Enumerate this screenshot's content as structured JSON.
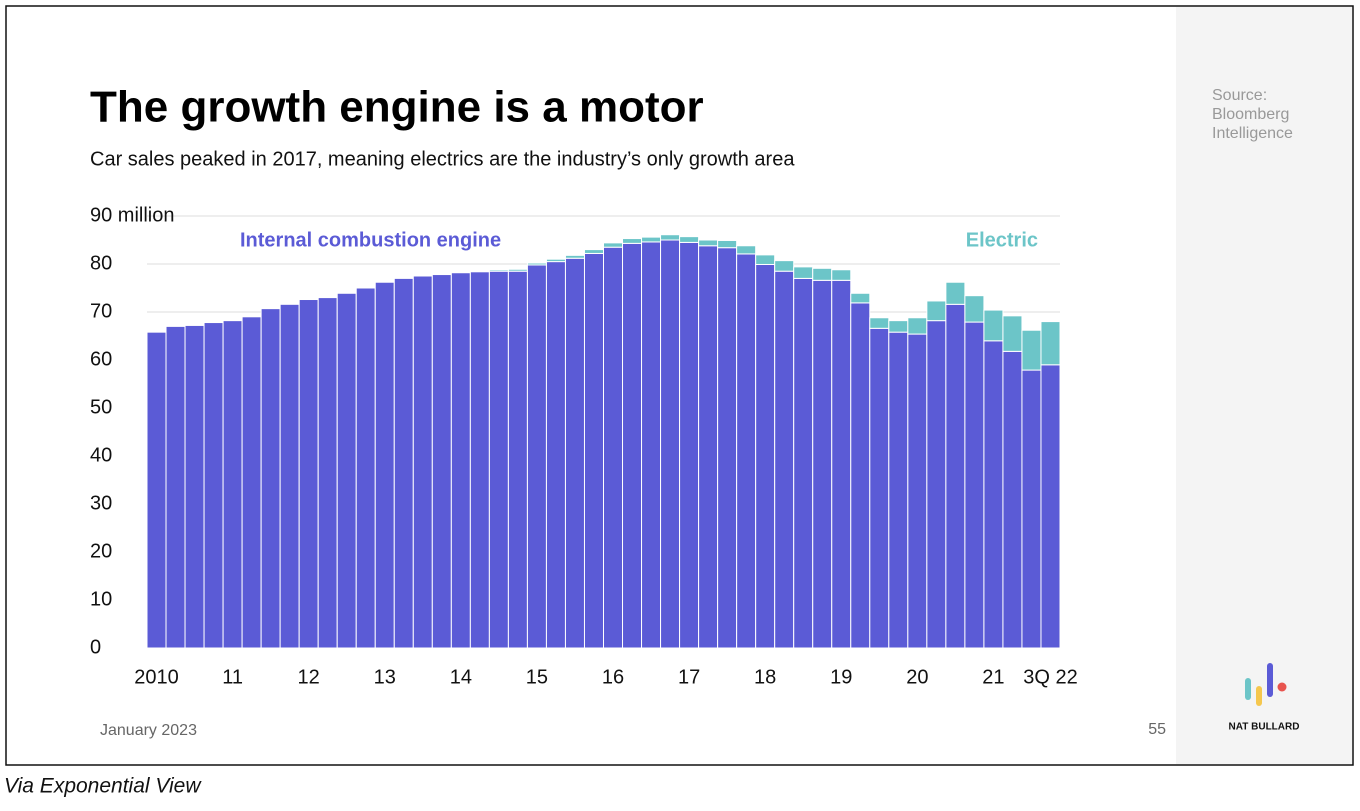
{
  "chart_data": {
    "type": "stacked_bar",
    "title": "The growth engine is a motor",
    "subtitle": "Car sales peaked in 2017, meaning electrics are the industry’s only growth area",
    "source": "Source: Bloomberg Intelligence",
    "footer_date": "January 2023",
    "page_number": "55",
    "brand": "NAT BULLARD",
    "caption": "Via Exponential View",
    "categories": [
      "2010",
      null,
      null,
      null,
      "11",
      null,
      null,
      null,
      "12",
      null,
      null,
      null,
      "13",
      null,
      null,
      null,
      "14",
      null,
      null,
      null,
      "15",
      null,
      null,
      null,
      "16",
      null,
      null,
      null,
      "17",
      null,
      null,
      null,
      "18",
      null,
      null,
      null,
      "19",
      null,
      null,
      null,
      "20",
      null,
      null,
      null,
      "21",
      null,
      null,
      "3Q 22"
    ],
    "series": [
      {
        "name": "Internal combustion engine",
        "color": "#5b5bd6",
        "values": [
          65.8,
          67.0,
          67.2,
          67.8,
          68.2,
          69.0,
          70.7,
          71.6,
          72.6,
          73.0,
          73.9,
          75.0,
          76.2,
          77.0,
          77.5,
          77.8,
          78.2,
          78.4,
          78.5,
          78.5,
          79.8,
          80.5,
          81.2,
          82.2,
          83.5,
          84.3,
          84.6,
          85.0,
          84.5,
          83.8,
          83.4,
          82.1,
          79.9,
          78.5,
          77.0,
          76.6,
          76.6,
          71.9,
          66.6,
          65.8,
          65.4,
          68.2,
          71.6,
          67.9,
          64.0,
          61.8,
          57.9,
          59.0
        ]
      },
      {
        "name": "Electric",
        "color": "#6cc5c8",
        "values": [
          0,
          0,
          0,
          0,
          0,
          0,
          0,
          0,
          0,
          0,
          0,
          0,
          0,
          0,
          0,
          0,
          0.1,
          0.2,
          0.3,
          0.4,
          0.4,
          0.5,
          0.6,
          0.8,
          0.9,
          1.0,
          1.0,
          1.1,
          1.2,
          1.2,
          1.5,
          1.7,
          2.0,
          2.2,
          2.4,
          2.5,
          2.2,
          2.0,
          2.2,
          2.4,
          3.4,
          4.1,
          4.6,
          5.5,
          6.4,
          7.4,
          8.3,
          9.0
        ]
      }
    ],
    "ylim": [
      0,
      90
    ],
    "yticks": [
      0,
      10,
      20,
      30,
      40,
      50,
      60,
      70,
      80,
      {
        "value": 90,
        "label": "90 million"
      }
    ],
    "grid": true
  }
}
